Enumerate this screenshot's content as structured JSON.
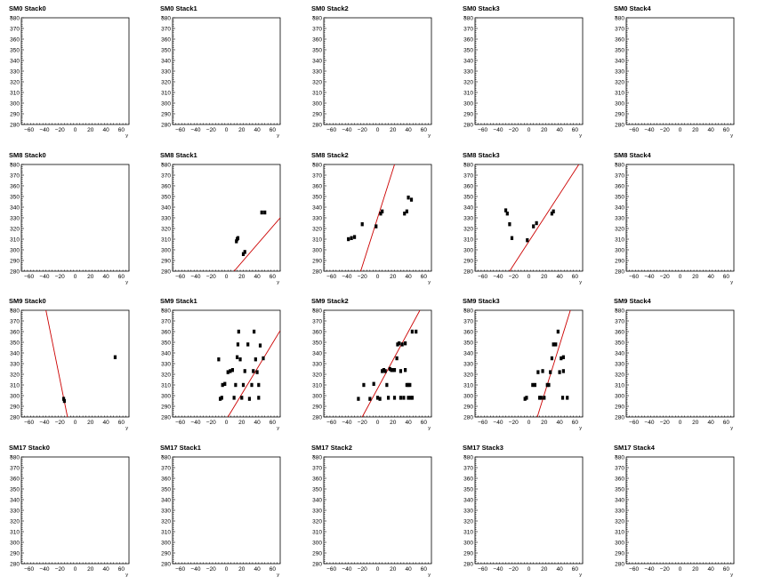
{
  "chart_data": {
    "type": "scatter",
    "xlabel": "y",
    "ylabel": "x",
    "xlim": [
      -70,
      70
    ],
    "ylim": [
      280,
      380
    ],
    "x_ticks": [
      -60,
      -40,
      -20,
      0,
      20,
      40,
      60
    ],
    "y_ticks": [
      280,
      290,
      300,
      310,
      320,
      330,
      340,
      350,
      360,
      370,
      380
    ],
    "x_tick_labels": [
      "−60",
      "−40",
      "−20",
      "0",
      "20",
      "40",
      "60"
    ],
    "y_tick_labels": [
      "280",
      "290",
      "300",
      "310",
      "320",
      "330",
      "340",
      "350",
      "360",
      "370",
      "380"
    ],
    "fit_line_color": "#cc0000",
    "hit_color": "#000000",
    "panels": [
      {
        "title": "SM0 Stack0",
        "hits": [],
        "fit": null
      },
      {
        "title": "SM0 Stack1",
        "hits": [],
        "fit": null
      },
      {
        "title": "SM0 Stack2",
        "hits": [],
        "fit": null
      },
      {
        "title": "SM0 Stack3",
        "hits": [],
        "fit": null
      },
      {
        "title": "SM0 Stack4",
        "hits": [],
        "fit": null
      },
      {
        "title": "SM8 Stack0",
        "hits": [],
        "fit": null
      },
      {
        "title": "SM8 Stack1",
        "hits": [
          [
            13,
            308
          ],
          [
            14,
            310
          ],
          [
            15,
            311
          ],
          [
            22,
            296
          ],
          [
            24,
            298
          ],
          [
            46,
            335
          ],
          [
            50,
            335
          ]
        ],
        "fit": [
          [
            10,
            280
          ],
          [
            70,
            330
          ]
        ]
      },
      {
        "title": "SM8 Stack2",
        "hits": [
          [
            -38,
            310
          ],
          [
            -34,
            311
          ],
          [
            -30,
            312
          ],
          [
            -20,
            324
          ],
          [
            -2,
            322
          ],
          [
            4,
            334
          ],
          [
            6,
            336
          ],
          [
            35,
            334
          ],
          [
            38,
            336
          ],
          [
            40,
            349
          ],
          [
            44,
            347
          ]
        ],
        "fit": [
          [
            -22,
            280
          ],
          [
            22,
            380
          ]
        ]
      },
      {
        "title": "SM8 Stack3",
        "hits": [
          [
            -30,
            337
          ],
          [
            -28,
            334
          ],
          [
            -25,
            324
          ],
          [
            -22,
            311
          ],
          [
            -2,
            309
          ],
          [
            6,
            322
          ],
          [
            10,
            325
          ],
          [
            30,
            334
          ],
          [
            32,
            336
          ]
        ],
        "fit": [
          [
            -25,
            280
          ],
          [
            65,
            380
          ]
        ]
      },
      {
        "title": "SM8 Stack4",
        "hits": [],
        "fit": null
      },
      {
        "title": "SM9 Stack0",
        "hits": [
          [
            -15,
            297
          ],
          [
            -14,
            295
          ],
          [
            52,
            336
          ]
        ],
        "fit": [
          [
            -38,
            380
          ],
          [
            -10,
            280
          ]
        ]
      },
      {
        "title": "SM9 Stack1",
        "hits": [
          [
            -10,
            334
          ],
          [
            -8,
            297
          ],
          [
            -6,
            298
          ],
          [
            -5,
            310
          ],
          [
            -2,
            311
          ],
          [
            2,
            322
          ],
          [
            5,
            323
          ],
          [
            8,
            324
          ],
          [
            10,
            298
          ],
          [
            12,
            310
          ],
          [
            14,
            336
          ],
          [
            15,
            348
          ],
          [
            16,
            360
          ],
          [
            18,
            334
          ],
          [
            20,
            298
          ],
          [
            22,
            310
          ],
          [
            24,
            323
          ],
          [
            28,
            348
          ],
          [
            30,
            297
          ],
          [
            33,
            310
          ],
          [
            35,
            323
          ],
          [
            36,
            360
          ],
          [
            38,
            334
          ],
          [
            40,
            322
          ],
          [
            42,
            298
          ],
          [
            42,
            310
          ],
          [
            44,
            347
          ],
          [
            48,
            335
          ]
        ],
        "fit": [
          [
            2,
            280
          ],
          [
            70,
            361
          ]
        ]
      },
      {
        "title": "SM9 Stack2",
        "hits": [
          [
            -25,
            297
          ],
          [
            -18,
            310
          ],
          [
            -10,
            297
          ],
          [
            -5,
            311
          ],
          [
            0,
            298
          ],
          [
            3,
            297
          ],
          [
            6,
            323
          ],
          [
            8,
            324
          ],
          [
            10,
            323
          ],
          [
            12,
            310
          ],
          [
            14,
            298
          ],
          [
            16,
            325
          ],
          [
            18,
            324
          ],
          [
            20,
            324
          ],
          [
            22,
            324
          ],
          [
            22,
            298
          ],
          [
            25,
            335
          ],
          [
            26,
            348
          ],
          [
            28,
            349
          ],
          [
            30,
            323
          ],
          [
            30,
            298
          ],
          [
            32,
            348
          ],
          [
            34,
            298
          ],
          [
            36,
            324
          ],
          [
            36,
            349
          ],
          [
            38,
            310
          ],
          [
            40,
            298
          ],
          [
            40,
            310
          ],
          [
            42,
            310
          ],
          [
            43,
            298
          ],
          [
            45,
            298
          ],
          [
            45,
            360
          ],
          [
            50,
            360
          ]
        ],
        "fit": [
          [
            -20,
            280
          ],
          [
            55,
            380
          ]
        ]
      },
      {
        "title": "SM9 Stack3",
        "hits": [
          [
            -5,
            297
          ],
          [
            -3,
            298
          ],
          [
            5,
            310
          ],
          [
            8,
            310
          ],
          [
            12,
            322
          ],
          [
            14,
            298
          ],
          [
            16,
            298
          ],
          [
            18,
            323
          ],
          [
            20,
            298
          ],
          [
            24,
            310
          ],
          [
            26,
            310
          ],
          [
            28,
            322
          ],
          [
            30,
            335
          ],
          [
            32,
            348
          ],
          [
            35,
            348
          ],
          [
            38,
            360
          ],
          [
            40,
            322
          ],
          [
            42,
            335
          ],
          [
            44,
            298
          ],
          [
            45,
            323
          ],
          [
            45,
            336
          ],
          [
            50,
            298
          ]
        ],
        "fit": [
          [
            11,
            280
          ],
          [
            54,
            380
          ]
        ]
      },
      {
        "title": "SM9 Stack4",
        "hits": [],
        "fit": null
      },
      {
        "title": "SM17 Stack0",
        "hits": [],
        "fit": null
      },
      {
        "title": "SM17 Stack1",
        "hits": [],
        "fit": null
      },
      {
        "title": "SM17 Stack2",
        "hits": [],
        "fit": null
      },
      {
        "title": "SM17 Stack3",
        "hits": [],
        "fit": null
      },
      {
        "title": "SM17 Stack4",
        "hits": [],
        "fit": null
      }
    ]
  }
}
